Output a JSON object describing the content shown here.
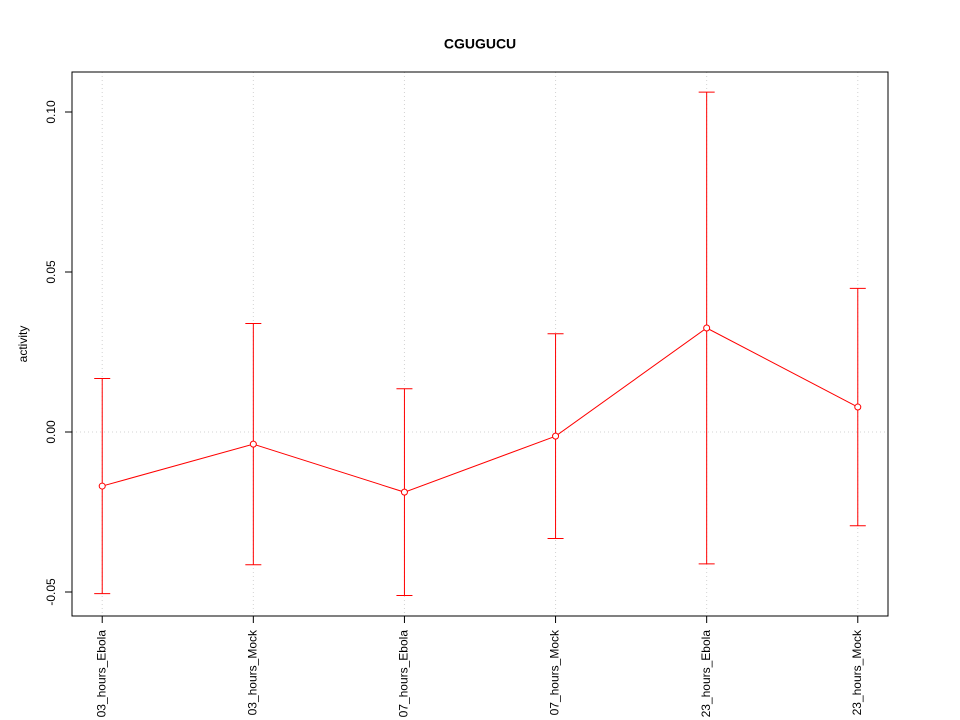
{
  "chart_data": {
    "type": "line",
    "title": "CGUGUCU",
    "y_label": "activity",
    "categories": [
      "03_hours_Ebola",
      "03_hours_Mock",
      "07_hours_Ebola",
      "07_hours_Mock",
      "23_hours_Ebola",
      "23_hours_Mock"
    ],
    "series": [
      {
        "name": "activity",
        "color": "#ff0000",
        "values": [
          -0.0169,
          -0.0038,
          -0.0188,
          -0.0013,
          0.0325,
          0.0078
        ],
        "errors": [
          0.0336,
          0.0377,
          0.0323,
          0.032,
          0.0737,
          0.0371
        ]
      }
    ],
    "ylim": [
      -0.0575,
      0.1125
    ],
    "yticks": [
      {
        "value": -0.05,
        "label": "-0.05"
      },
      {
        "value": 0,
        "label": "0.00"
      },
      {
        "value": 0.05,
        "label": "0.05"
      },
      {
        "value": 0.1,
        "label": "0.10"
      }
    ],
    "grid": "x",
    "reference_line": 0
  }
}
